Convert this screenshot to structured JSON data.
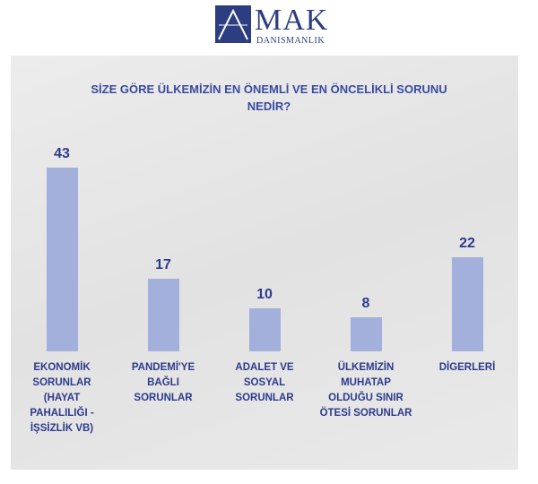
{
  "logo": {
    "name": "MAK",
    "tagline": "DANISMANLIK"
  },
  "chart_data": {
    "type": "bar",
    "title": "SİZE GÖRE ÜLKEMİZİN EN ÖNEMLİ VE EN ÖNCELİKLİ SORUNU NEDİR?",
    "categories": [
      "EKONOMİK SORUNLAR (HAYAT PAHALILIĞI - İŞSİZLİK VB)",
      "PANDEMİ'YE BAĞLI SORUNLAR",
      "ADALET VE SOSYAL SORUNLAR",
      "ÜLKEMİZİN MUHATAP OLDUĞU SINIR ÖTESİ SORUNLAR",
      "DİGERLERİ"
    ],
    "values": [
      43,
      17,
      10,
      8,
      22
    ],
    "color": "#a4b0dc"
  }
}
